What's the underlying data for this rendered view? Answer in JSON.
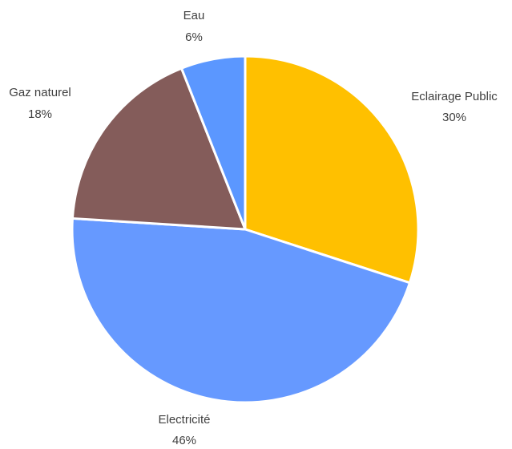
{
  "chart_data": {
    "type": "pie",
    "title": "",
    "slices": [
      {
        "label": "Eclairage Public",
        "value": 30,
        "value_label": "30%",
        "color": "#FFC000"
      },
      {
        "label": "Electricité",
        "value": 46,
        "value_label": "46%",
        "color": "#6699FF"
      },
      {
        "label": "Gaz naturel",
        "value": 18,
        "value_label": "18%",
        "color": "#845C5A"
      },
      {
        "label": "Eau",
        "value": 6,
        "value_label": "6%",
        "color": "#5B97FF"
      }
    ],
    "start_angle_deg": 0,
    "direction": "clockwise",
    "legend": "none",
    "data_labels": "outside"
  }
}
